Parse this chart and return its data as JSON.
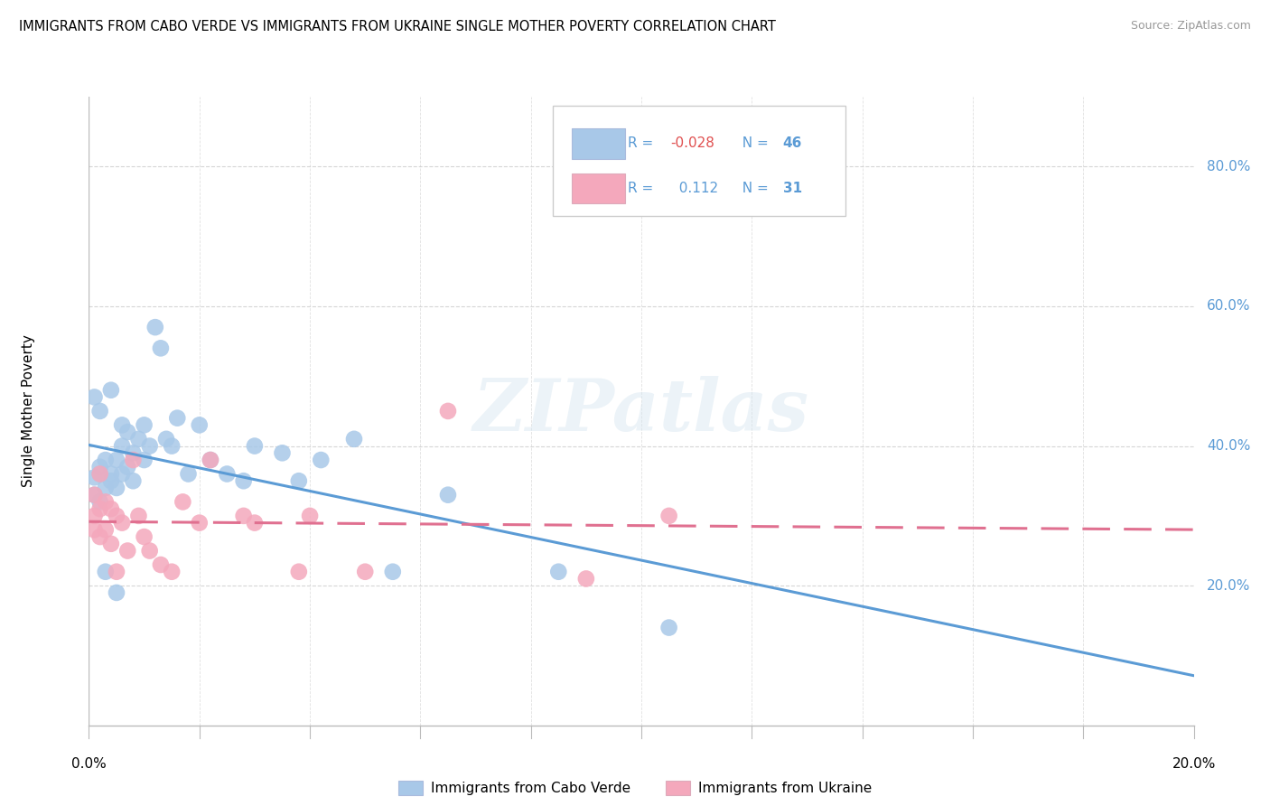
{
  "title": "IMMIGRANTS FROM CABO VERDE VS IMMIGRANTS FROM UKRAINE SINGLE MOTHER POVERTY CORRELATION CHART",
  "source": "Source: ZipAtlas.com",
  "ylabel": "Single Mother Poverty",
  "cabo_verde_R": "-0.028",
  "cabo_verde_N": "46",
  "ukraine_R": "0.112",
  "ukraine_N": "31",
  "cabo_verde_color": "#a8c8e8",
  "ukraine_color": "#f4a8bc",
  "cabo_verde_line_color": "#5b9bd5",
  "ukraine_line_color": "#e07090",
  "background_color": "#ffffff",
  "grid_color": "#cccccc",
  "watermark": "ZIPatlas",
  "xlim": [
    0.0,
    0.2
  ],
  "ylim": [
    0.0,
    0.9
  ],
  "cabo_verde_x": [
    0.001,
    0.001,
    0.001,
    0.002,
    0.002,
    0.002,
    0.002,
    0.003,
    0.003,
    0.003,
    0.004,
    0.004,
    0.004,
    0.005,
    0.005,
    0.005,
    0.006,
    0.006,
    0.006,
    0.007,
    0.007,
    0.008,
    0.008,
    0.009,
    0.01,
    0.01,
    0.011,
    0.012,
    0.013,
    0.014,
    0.015,
    0.016,
    0.018,
    0.02,
    0.022,
    0.025,
    0.028,
    0.03,
    0.035,
    0.038,
    0.042,
    0.048,
    0.055,
    0.065,
    0.085,
    0.105
  ],
  "cabo_verde_y": [
    0.355,
    0.33,
    0.47,
    0.45,
    0.37,
    0.36,
    0.32,
    0.38,
    0.34,
    0.22,
    0.48,
    0.36,
    0.35,
    0.38,
    0.34,
    0.19,
    0.43,
    0.4,
    0.36,
    0.42,
    0.37,
    0.39,
    0.35,
    0.41,
    0.43,
    0.38,
    0.4,
    0.57,
    0.54,
    0.41,
    0.4,
    0.44,
    0.36,
    0.43,
    0.38,
    0.36,
    0.35,
    0.4,
    0.39,
    0.35,
    0.38,
    0.41,
    0.22,
    0.33,
    0.22,
    0.14
  ],
  "ukraine_x": [
    0.001,
    0.001,
    0.001,
    0.002,
    0.002,
    0.002,
    0.003,
    0.003,
    0.004,
    0.004,
    0.005,
    0.005,
    0.006,
    0.007,
    0.008,
    0.009,
    0.01,
    0.011,
    0.013,
    0.015,
    0.017,
    0.02,
    0.022,
    0.028,
    0.03,
    0.038,
    0.04,
    0.05,
    0.065,
    0.09,
    0.105
  ],
  "ukraine_y": [
    0.28,
    0.33,
    0.3,
    0.31,
    0.27,
    0.36,
    0.32,
    0.28,
    0.26,
    0.31,
    0.3,
    0.22,
    0.29,
    0.25,
    0.38,
    0.3,
    0.27,
    0.25,
    0.23,
    0.22,
    0.32,
    0.29,
    0.38,
    0.3,
    0.29,
    0.22,
    0.3,
    0.22,
    0.45,
    0.21,
    0.3
  ],
  "legend_cabo_color": "#a8c8e8",
  "legend_ukraine_color": "#f4a8bc",
  "legend_text_color": "#5b9bd5",
  "legend_r_negative_color": "#e05050"
}
